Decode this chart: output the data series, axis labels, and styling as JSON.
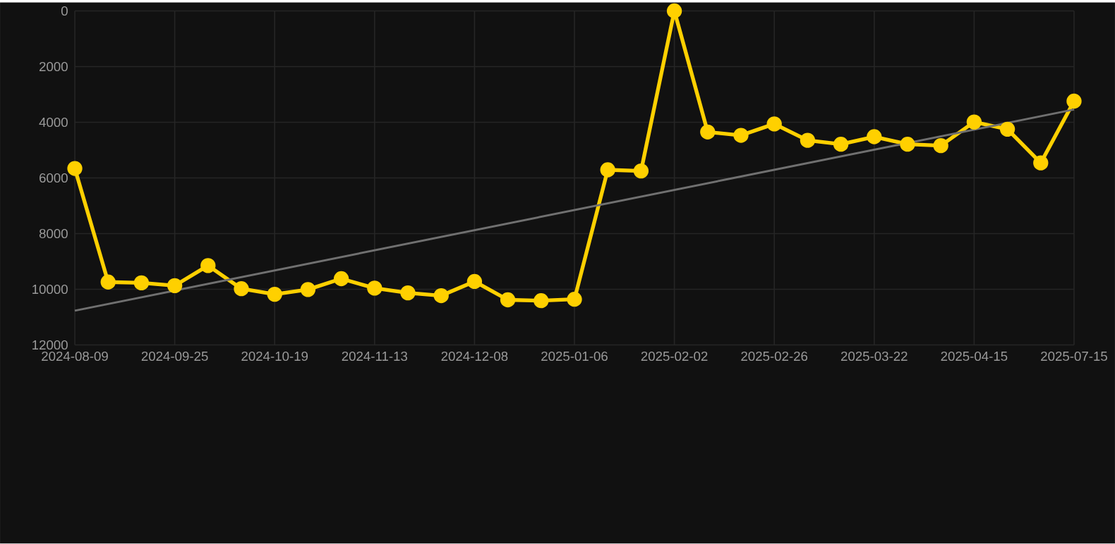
{
  "chart_data": {
    "type": "line",
    "categories": [
      "2024-08-09",
      null,
      null,
      "2024-09-25",
      null,
      null,
      "2024-10-19",
      null,
      null,
      "2024-11-13",
      null,
      null,
      "2024-12-08",
      null,
      null,
      "2025-01-06",
      null,
      null,
      "2025-02-02",
      null,
      null,
      "2025-02-26",
      null,
      null,
      "2025-03-22",
      null,
      null,
      "2025-04-15",
      null,
      null,
      "2025-07-15"
    ],
    "series": [
      {
        "color": "#ffd000",
        "marker": "circle",
        "values": [
          5660,
          9740,
          9770,
          9870,
          9150,
          9980,
          10180,
          10010,
          9620,
          9960,
          10130,
          10230,
          9720,
          10380,
          10410,
          10360,
          5710,
          5750,
          0,
          4350,
          4470,
          4060,
          4650,
          4790,
          4520,
          4790,
          4840,
          3990,
          4250,
          5460,
          3240
        ]
      },
      {
        "color": "#707070",
        "marker": "none",
        "values": [
          10770,
          null,
          null,
          null,
          null,
          null,
          null,
          null,
          null,
          null,
          null,
          null,
          null,
          null,
          null,
          null,
          null,
          null,
          null,
          null,
          null,
          null,
          null,
          null,
          null,
          null,
          null,
          null,
          null,
          null,
          3540
        ]
      }
    ],
    "ylim": [
      12000,
      0
    ],
    "yticks": [
      0,
      2000,
      4000,
      6000,
      8000,
      10000,
      12000
    ],
    "grid": true
  }
}
